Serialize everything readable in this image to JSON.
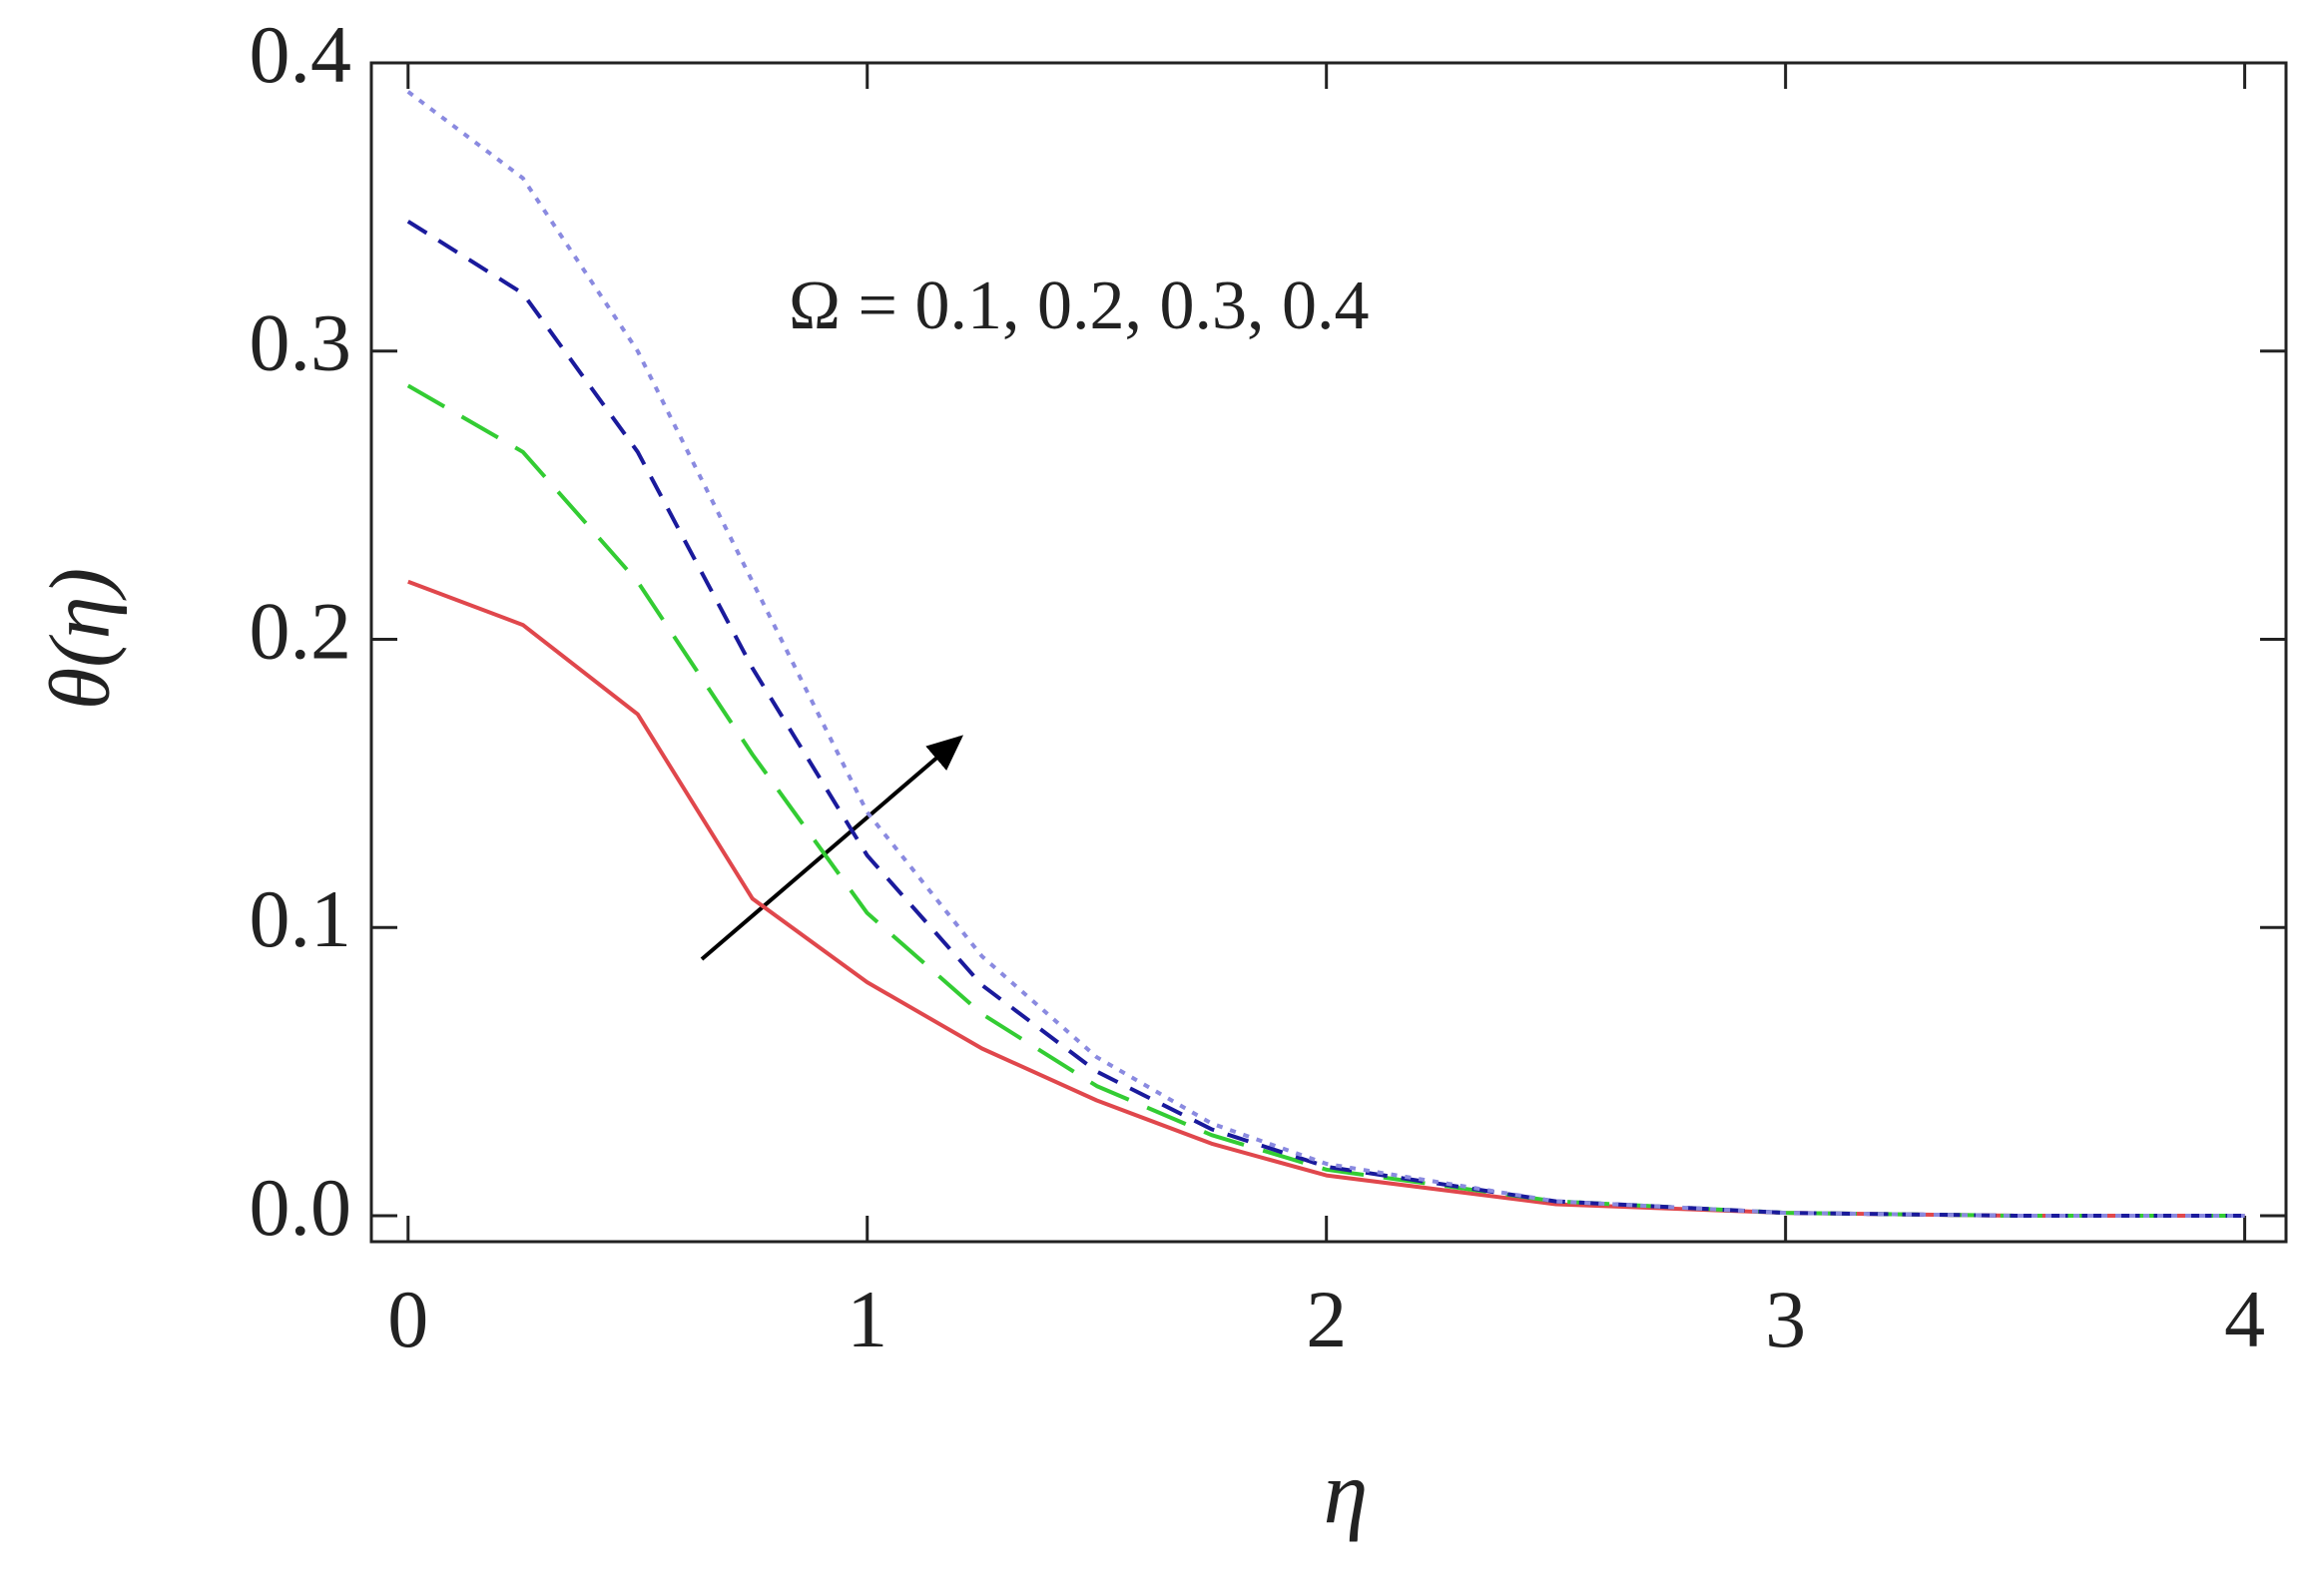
{
  "chart_data": {
    "type": "line",
    "ylabel": "θ(η)",
    "xlabel": "η",
    "annotation": "Ω = 0.1, 0.2, 0.3, 0.4",
    "x": [
      0,
      0.25,
      0.5,
      0.75,
      1,
      1.25,
      1.5,
      1.75,
      2,
      2.5,
      3,
      3.5,
      4
    ],
    "series": [
      {
        "color": "#e0474c",
        "values": [
          0.22,
          0.205,
          0.174,
          0.11,
          0.081,
          0.058,
          0.04,
          0.025,
          0.014,
          0.004,
          0.001,
          0,
          0
        ]
      },
      {
        "color": "#33cc33",
        "values": [
          0.288,
          0.265,
          0.22,
          0.16,
          0.105,
          0.07,
          0.045,
          0.028,
          0.016,
          0.005,
          0.001,
          0,
          0
        ]
      },
      {
        "color": "#1a1a9c",
        "values": [
          0.345,
          0.32,
          0.265,
          0.19,
          0.125,
          0.08,
          0.05,
          0.03,
          0.017,
          0.005,
          0.001,
          0,
          0
        ]
      },
      {
        "color": "#8a8ae0",
        "values": [
          0.39,
          0.36,
          0.3,
          0.22,
          0.14,
          0.09,
          0.055,
          0.032,
          0.018,
          0.005,
          0.001,
          0,
          0
        ]
      }
    ],
    "xlim": [
      -0.08,
      4.09
    ],
    "ylim": [
      -0.009,
      0.4
    ],
    "xticks": [
      0,
      1,
      2,
      3,
      4
    ],
    "yticks": [
      {
        "value": 0,
        "label": "0.0"
      },
      0.1,
      0.2,
      0.3,
      0.4
    ]
  }
}
